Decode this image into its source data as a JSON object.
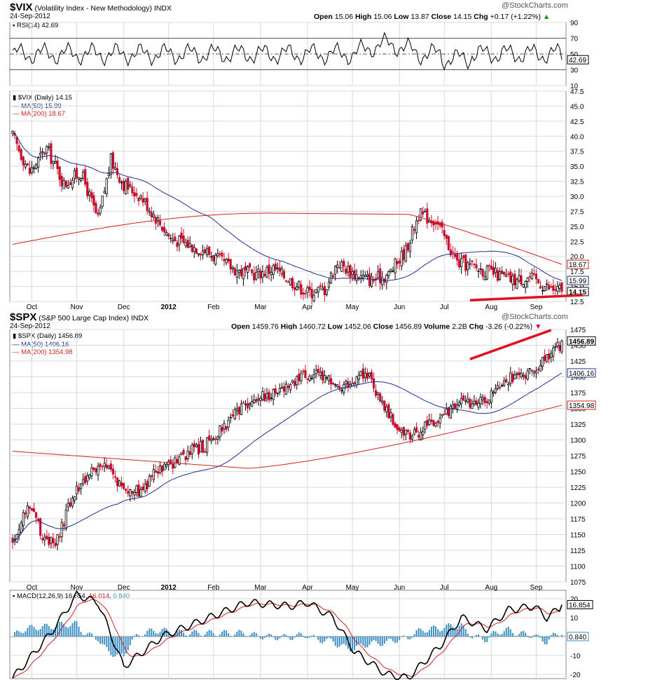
{
  "vix": {
    "symbol": "$VIX",
    "name": "(Volatility Index - New Methodology)",
    "exchange": "INDX",
    "date": "24-Sep-2012",
    "quote": {
      "open": "15.06",
      "high": "15.06",
      "low": "13.87",
      "close": "14.15",
      "chg": "+0.17 (+1.22%)"
    },
    "watermark": "@StockCharts.com",
    "legend": {
      "main": "$VIX (Daily) 14.15",
      "ma50": "MA(50) 15.99",
      "ma200": "MA(200) 18.67"
    },
    "rsi_label": "RSI(14) 42.69"
  },
  "spx": {
    "symbol": "$SPX",
    "name": "(S&P 500 Large Cap Index)",
    "exchange": "INDX",
    "date": "24-Sep-2012",
    "quote": {
      "open": "1459.76",
      "high": "1460.72",
      "low": "1452.06",
      "close": "1456.89",
      "volume": "2.2B",
      "chg": "-3.26 (-0.22%)"
    },
    "watermark": "@StockCharts.com",
    "legend": {
      "main": "$SPX (Daily) 1456.89",
      "ma50": "MA(50) 1406.16",
      "ma200": "MA(200) 1354.98"
    },
    "macd_label": {
      "name": "MACD(12,26,9)",
      "v1": "16.854",
      "v2": "16.014",
      "v3": "0.840"
    }
  },
  "labels": {
    "quote_open": "Open",
    "quote_high": "High",
    "quote_low": "Low",
    "quote_close": "Close",
    "quote_volume": "Volume",
    "quote_chg": "Chg"
  },
  "colors": {
    "up": "#000000",
    "down": "#c8102e",
    "ma50": "#1f2f8f",
    "ma200": "#d42020",
    "trend": "#e01020",
    "macd_hist": "#3a8fc4",
    "grid": "#d9d9d9"
  },
  "chart_data": [
    {
      "type": "line",
      "panel": "VIX RSI(14)",
      "ylim": [
        10,
        90
      ],
      "y_ticks": [
        90,
        70,
        50,
        30,
        10
      ],
      "reference_lines": [
        70,
        50,
        30
      ],
      "current": 42.69,
      "value_labels": [
        "42.69"
      ]
    },
    {
      "type": "candlestick",
      "title": "$VIX (Volatility Index - New Methodology)",
      "ylim": [
        12.5,
        47.5
      ],
      "y_ticks": [
        12.5,
        15.0,
        17.5,
        20.0,
        22.5,
        25.0,
        27.5,
        30.0,
        32.5,
        35.0,
        37.5,
        40.0,
        42.5,
        45.0,
        47.5
      ],
      "x_ticks": [
        "Oct",
        "Nov",
        "Dec",
        "2012",
        "Feb",
        "Mar",
        "Apr",
        "May",
        "Jun",
        "Jul",
        "Aug",
        "Sep"
      ],
      "series": [
        {
          "name": "$VIX (Daily)",
          "last": 14.15,
          "close_path": [
            [
              0,
              40
            ],
            [
              8,
              34
            ],
            [
              16,
              38
            ],
            [
              24,
              32
            ],
            [
              32,
              34
            ],
            [
              40,
              26
            ],
            [
              46,
              36
            ],
            [
              52,
              32
            ],
            [
              60,
              30
            ],
            [
              66,
              27
            ],
            [
              74,
              23
            ],
            [
              82,
              22
            ],
            [
              90,
              21
            ],
            [
              98,
              19
            ],
            [
              106,
              17.5
            ],
            [
              114,
              17
            ],
            [
              122,
              18
            ],
            [
              130,
              16
            ],
            [
              138,
              14
            ],
            [
              146,
              14.5
            ],
            [
              152,
              19
            ],
            [
              160,
              17
            ],
            [
              168,
              16
            ],
            [
              176,
              17
            ],
            [
              184,
              21
            ],
            [
              190,
              27
            ],
            [
              198,
              26
            ],
            [
              208,
              19
            ],
            [
              218,
              18
            ],
            [
              226,
              17
            ],
            [
              234,
              16
            ],
            [
              242,
              16.5
            ],
            [
              252,
              14.5
            ]
          ]
        },
        {
          "name": "MA(50)",
          "last": 15.99
        },
        {
          "name": "MA(200)",
          "last": 18.67
        }
      ],
      "value_labels": [
        "18.67",
        "15.99",
        "14.15"
      ],
      "annotations": [
        "rising red trend line under Aug–Sep lows"
      ]
    },
    {
      "type": "candlestick",
      "title": "$SPX (S&P 500 Large Cap Index)",
      "ylim": [
        1075,
        1475
      ],
      "y_ticks": [
        1075,
        1100,
        1125,
        1150,
        1175,
        1200,
        1225,
        1250,
        1275,
        1300,
        1325,
        1350,
        1375,
        1400,
        1425,
        1450,
        1475
      ],
      "x_ticks": [
        "Oct",
        "Nov",
        "Dec",
        "2012",
        "Feb",
        "Mar",
        "Apr",
        "May",
        "Jun",
        "Jul",
        "Aug",
        "Sep"
      ],
      "series": [
        {
          "name": "$SPX (Daily)",
          "last": 1456.89,
          "close_path": [
            [
              0,
              1140
            ],
            [
              8,
              1200
            ],
            [
              14,
              1150
            ],
            [
              20,
              1130
            ],
            [
              28,
              1210
            ],
            [
              36,
              1250
            ],
            [
              44,
              1255
            ],
            [
              52,
              1225
            ],
            [
              60,
              1215
            ],
            [
              66,
              1245
            ],
            [
              74,
              1260
            ],
            [
              82,
              1280
            ],
            [
              90,
              1290
            ],
            [
              98,
              1320
            ],
            [
              106,
              1345
            ],
            [
              114,
              1365
            ],
            [
              122,
              1375
            ],
            [
              130,
              1390
            ],
            [
              138,
              1405
            ],
            [
              146,
              1400
            ],
            [
              152,
              1380
            ],
            [
              160,
              1395
            ],
            [
              166,
              1405
            ],
            [
              172,
              1365
            ],
            [
              180,
              1320
            ],
            [
              186,
              1300
            ],
            [
              192,
              1320
            ],
            [
              198,
              1325
            ],
            [
              206,
              1355
            ],
            [
              214,
              1360
            ],
            [
              222,
              1365
            ],
            [
              230,
              1395
            ],
            [
              238,
              1405
            ],
            [
              246,
              1415
            ],
            [
              252,
              1440
            ],
            [
              258,
              1456
            ]
          ]
        },
        {
          "name": "MA(50)",
          "last": 1406.16
        },
        {
          "name": "MA(200)",
          "last": 1354.98
        }
      ],
      "value_labels": [
        "1456.89",
        "1406.16",
        "1354.98"
      ],
      "annotations": [
        "rising red trend line over Aug–Sep highs"
      ]
    },
    {
      "type": "line",
      "panel": "SPX MACD(12,26,9)",
      "ylim": [
        -20,
        20
      ],
      "y_ticks": [
        20,
        10,
        -10,
        -20
      ],
      "series": [
        {
          "name": "MACD",
          "last": 16.854
        },
        {
          "name": "Signal",
          "last": 16.014
        },
        {
          "name": "Histogram",
          "last": 0.84
        }
      ],
      "value_labels": [
        "16.854",
        "0.840"
      ]
    }
  ]
}
